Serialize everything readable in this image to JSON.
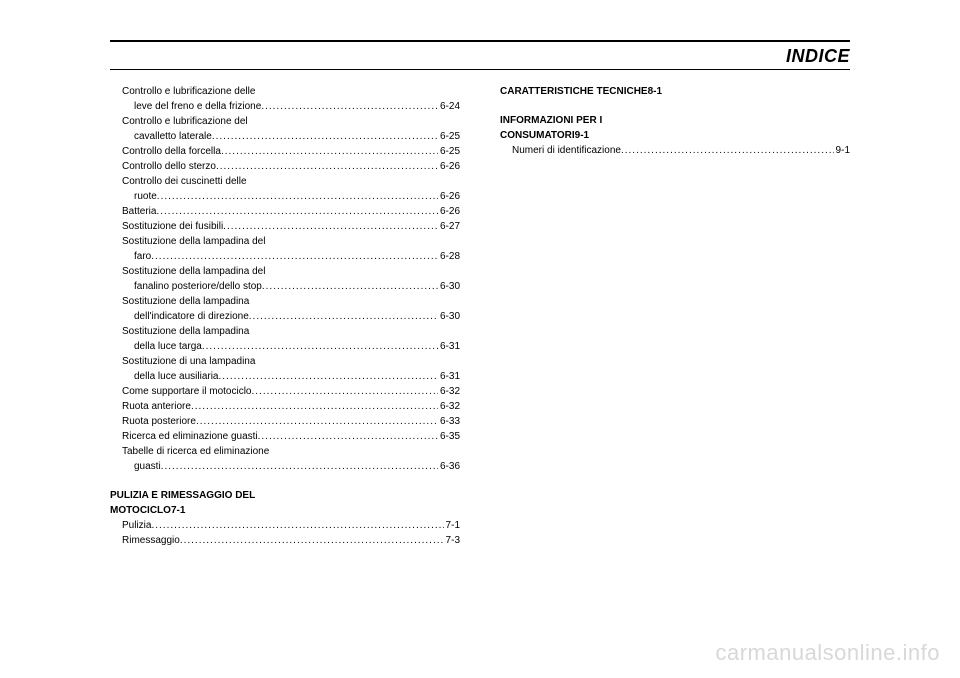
{
  "header": {
    "title": "INDICE"
  },
  "col1": {
    "items": [
      {
        "labelLines": [
          "Controllo e lubrificazione delle",
          "leve del freno e della frizione"
        ],
        "page": "6-24",
        "indent": 1
      },
      {
        "labelLines": [
          "Controllo e lubrificazione del",
          "cavalletto laterale"
        ],
        "page": "6-25",
        "indent": 1
      },
      {
        "labelLines": [
          "Controllo della forcella"
        ],
        "page": "6-25",
        "indent": 1
      },
      {
        "labelLines": [
          "Controllo dello sterzo"
        ],
        "page": "6-26",
        "indent": 1
      },
      {
        "labelLines": [
          "Controllo dei cuscinetti delle",
          "ruote"
        ],
        "page": "6-26",
        "indent": 1
      },
      {
        "labelLines": [
          "Batteria"
        ],
        "page": "6-26",
        "indent": 1
      },
      {
        "labelLines": [
          "Sostituzione dei fusibili"
        ],
        "page": "6-27",
        "indent": 1
      },
      {
        "labelLines": [
          "Sostituzione della lampadina del",
          "faro"
        ],
        "page": "6-28",
        "indent": 1
      },
      {
        "labelLines": [
          "Sostituzione della lampadina del",
          "fanalino posteriore/dello stop"
        ],
        "page": "6-30",
        "indent": 1
      },
      {
        "labelLines": [
          "Sostituzione della lampadina",
          "dell'indicatore di direzione"
        ],
        "page": "6-30",
        "indent": 1
      },
      {
        "labelLines": [
          "Sostituzione della lampadina",
          "della luce targa"
        ],
        "page": "6-31",
        "indent": 1
      },
      {
        "labelLines": [
          "Sostituzione di una lampadina",
          "della luce ausiliaria"
        ],
        "page": "6-31",
        "indent": 1
      },
      {
        "labelLines": [
          "Come supportare il motociclo"
        ],
        "page": "6-32",
        "indent": 1
      },
      {
        "labelLines": [
          "Ruota anteriore"
        ],
        "page": "6-32",
        "indent": 1
      },
      {
        "labelLines": [
          "Ruota posteriore"
        ],
        "page": "6-33",
        "indent": 1
      },
      {
        "labelLines": [
          "Ricerca ed eliminazione guasti"
        ],
        "page": "6-35",
        "indent": 1
      },
      {
        "labelLines": [
          "Tabelle di ricerca ed eliminazione",
          "guasti"
        ],
        "page": "6-36",
        "indent": 1
      }
    ],
    "section2": {
      "titleLines": [
        "PULIZIA E RIMESSAGGIO DEL",
        "MOTOCICLO"
      ],
      "titlePage": "7-1",
      "items": [
        {
          "labelLines": [
            "Pulizia"
          ],
          "page": "7-1",
          "indent": 1
        },
        {
          "labelLines": [
            "Rimessaggio"
          ],
          "page": "7-3",
          "indent": 1
        }
      ]
    }
  },
  "col2": {
    "section1": {
      "titleLines": [
        "CARATTERISTICHE TECNICHE"
      ],
      "titlePage": "8-1"
    },
    "section2": {
      "titleLines": [
        "INFORMAZIONI PER I",
        "CONSUMATORI"
      ],
      "titlePage": "9-1",
      "items": [
        {
          "labelLines": [
            "Numeri di identificazione"
          ],
          "page": "9-1",
          "indent": 1
        }
      ]
    }
  },
  "watermark": "carmanualsonline.info"
}
